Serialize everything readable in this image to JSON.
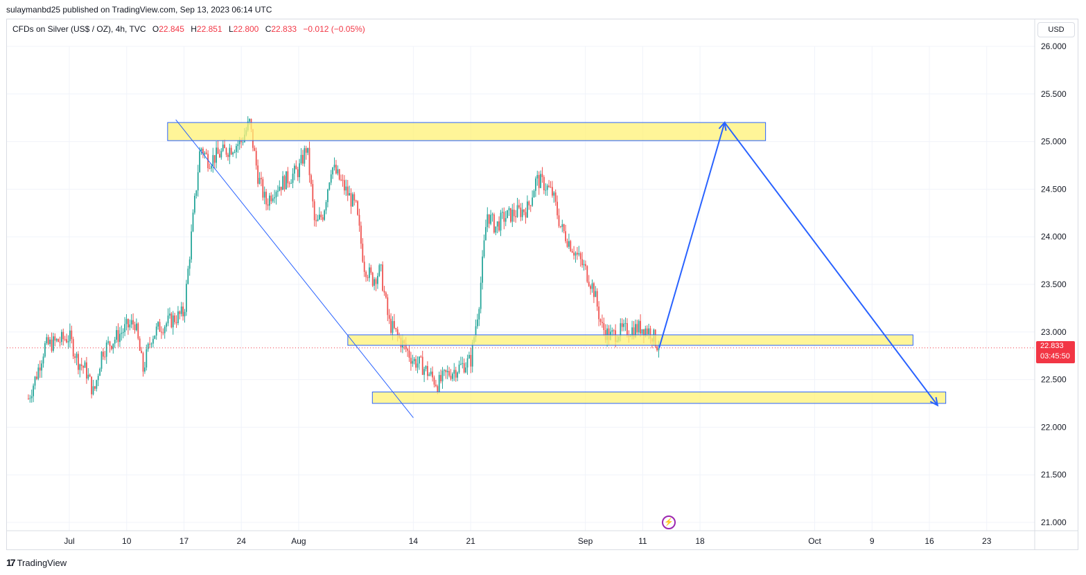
{
  "header": {
    "published_line": "sulaymanbd25 published on TradingView.com, Sep 13, 2023 06:14 UTC"
  },
  "legend": {
    "symbol": "CFDs on Silver (US$ / OZ), 4h, TVC",
    "open_label": "O",
    "open": "22.845",
    "high_label": "H",
    "high": "22.851",
    "low_label": "L",
    "low": "22.800",
    "close_label": "C",
    "close": "22.833",
    "change": "−0.012 (−0.05%)"
  },
  "currency_button": "USD",
  "last_price": {
    "price": "22.833",
    "countdown": "03:45:50"
  },
  "footer": {
    "brand_logo": "17",
    "brand": "TradingView"
  },
  "colors": {
    "up": "#26a69a",
    "down": "#ef5350",
    "zone_fill": "#fff176",
    "zone_border": "#2962ff",
    "arrow": "#2962ff",
    "trendline": "#2962ff",
    "last_price_line": "#f23645",
    "grid": "#f0f3fa"
  },
  "chart_data": {
    "type": "candlestick",
    "symbol": "CFDs on Silver (US$ / OZ)",
    "interval": "4h",
    "ylim": [
      20.9,
      26.1
    ],
    "y_ticks": [
      "26.000",
      "25.500",
      "25.000",
      "24.500",
      "24.000",
      "23.500",
      "23.000",
      "22.500",
      "22.000",
      "21.500",
      "21.000"
    ],
    "x_ticks": [
      "Jul",
      "10",
      "17",
      "24",
      "Aug",
      "14",
      "21",
      "Sep",
      "11",
      "18",
      "Oct",
      "9",
      "16",
      "23"
    ],
    "price_path": [
      [
        "2023-06-28",
        22.3
      ],
      [
        "2023-06-29",
        22.55
      ],
      [
        "2023-06-30",
        22.85
      ],
      [
        "2023-07-03",
        22.95
      ],
      [
        "2023-07-04",
        22.7
      ],
      [
        "2023-07-05",
        22.6
      ],
      [
        "2023-07-06",
        22.35
      ],
      [
        "2023-07-07",
        22.8
      ],
      [
        "2023-07-10",
        23.05
      ],
      [
        "2023-07-11",
        23.1
      ],
      [
        "2023-07-12",
        22.6
      ],
      [
        "2023-07-13",
        22.95
      ],
      [
        "2023-07-14",
        23.05
      ],
      [
        "2023-07-17",
        23.2
      ],
      [
        "2023-07-18",
        24.1
      ],
      [
        "2023-07-19",
        24.95
      ],
      [
        "2023-07-20",
        24.8
      ],
      [
        "2023-07-21",
        24.85
      ],
      [
        "2023-07-24",
        25.0
      ],
      [
        "2023-07-25",
        25.2
      ],
      [
        "2023-07-26",
        24.65
      ],
      [
        "2023-07-27",
        24.35
      ],
      [
        "2023-07-28",
        24.5
      ],
      [
        "2023-07-31",
        24.7
      ],
      [
        "2023-08-01",
        24.95
      ],
      [
        "2023-08-02",
        24.1
      ],
      [
        "2023-08-03",
        24.25
      ],
      [
        "2023-08-04",
        24.75
      ],
      [
        "2023-08-07",
        24.3
      ],
      [
        "2023-08-08",
        23.7
      ],
      [
        "2023-08-09",
        23.55
      ],
      [
        "2023-08-10",
        23.65
      ],
      [
        "2023-08-11",
        23.1
      ],
      [
        "2023-08-14",
        22.7
      ],
      [
        "2023-08-15",
        22.65
      ],
      [
        "2023-08-16",
        22.55
      ],
      [
        "2023-08-17",
        22.45
      ],
      [
        "2023-08-18",
        22.55
      ],
      [
        "2023-08-21",
        22.7
      ],
      [
        "2023-08-22",
        23.3
      ],
      [
        "2023-08-23",
        24.25
      ],
      [
        "2023-08-24",
        24.1
      ],
      [
        "2023-08-25",
        24.2
      ],
      [
        "2023-08-28",
        24.3
      ],
      [
        "2023-08-29",
        24.6
      ],
      [
        "2023-08-30",
        24.55
      ],
      [
        "2023-08-31",
        24.45
      ],
      [
        "2023-09-01",
        24.1
      ],
      [
        "2023-09-04",
        23.65
      ],
      [
        "2023-09-05",
        23.45
      ],
      [
        "2023-09-06",
        23.05
      ],
      [
        "2023-09-07",
        22.95
      ],
      [
        "2023-09-08",
        23.0
      ],
      [
        "2023-09-11",
        23.05
      ],
      [
        "2023-09-12",
        23.0
      ],
      [
        "2023-09-13",
        22.83
      ]
    ],
    "last_price": 22.833,
    "last_price_countdown": "03:45:50",
    "annotations": {
      "zones": [
        {
          "from": "2023-07-15",
          "to": "2023-09-26",
          "low": 25.01,
          "high": 25.2
        },
        {
          "from": "2023-08-06",
          "to": "2023-10-14",
          "low": 22.86,
          "high": 22.97
        },
        {
          "from": "2023-08-09",
          "to": "2023-10-18",
          "low": 22.25,
          "high": 22.37
        }
      ],
      "trendline": [
        [
          "2023-07-16",
          25.23
        ],
        [
          "2023-08-14",
          22.1
        ]
      ],
      "projection_path": [
        [
          "2023-09-13",
          22.83
        ],
        [
          "2023-09-21",
          25.2
        ],
        [
          "2023-10-17",
          22.23
        ]
      ]
    }
  }
}
